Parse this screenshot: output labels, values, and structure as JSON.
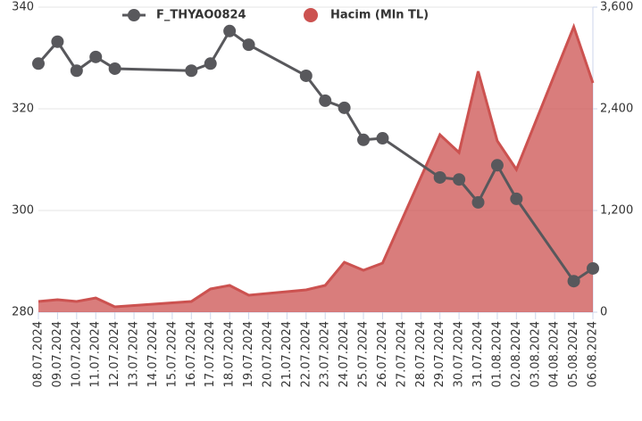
{
  "chart_data": {
    "type": "line",
    "x": [
      "08.07.2024",
      "09.07.2024",
      "10.07.2024",
      "11.07.2024",
      "12.07.2024",
      "16.07.2024",
      "17.07.2024",
      "18.07.2024",
      "19.07.2024",
      "22.07.2024",
      "23.07.2024",
      "24.07.2024",
      "25.07.2024",
      "26.07.2024",
      "29.07.2024",
      "30.07.2024",
      "31.07.2024",
      "01.08.2024",
      "02.08.2024",
      "05.08.2024",
      "06.08.2024"
    ],
    "xlim": [
      "08.07.2024",
      "06.08.2024"
    ],
    "xticks": [
      "08.07.2024",
      "09.07.2024",
      "10.07.2024",
      "11.07.2024",
      "12.07.2024",
      "13.07.2024",
      "14.07.2024",
      "15.07.2024",
      "16.07.2024",
      "17.07.2024",
      "18.07.2024",
      "19.07.2024",
      "20.07.2024",
      "21.07.2024",
      "22.07.2024",
      "23.07.2024",
      "24.07.2024",
      "25.07.2024",
      "26.07.2024",
      "27.07.2024",
      "28.07.2024",
      "29.07.2024",
      "30.07.2024",
      "31.07.2024",
      "01.08.2024",
      "02.08.2024",
      "03.08.2024",
      "04.08.2024",
      "05.08.2024",
      "06.08.2024"
    ],
    "series": [
      {
        "name": "F_THYAO0824",
        "type": "line",
        "color": "#58585c",
        "values": [
          328.9,
          333.2,
          327.5,
          330.2,
          327.9,
          327.5,
          328.9,
          335.3,
          332.6,
          326.5,
          321.6,
          320.2,
          313.9,
          314.2,
          306.5,
          306.1,
          301.6,
          308.9,
          302.3,
          286.1,
          288.6
        ]
      },
      {
        "name": "Hacim (Mln TL)",
        "type": "area",
        "axis": "y2",
        "color": "#cc5250",
        "values": [
          126,
          147,
          126,
          168,
          63,
          126,
          274,
          316,
          200,
          263,
          316,
          589,
          495,
          579,
          2095,
          1884,
          2842,
          2021,
          1684,
          3368,
          2705
        ]
      }
    ],
    "ylim": [
      280,
      340
    ],
    "yticks": [
      280,
      300,
      320,
      340
    ],
    "y2lim": [
      0,
      3600
    ],
    "y2ticks": [
      0,
      {
        "value": 1200,
        "label": "1,200"
      },
      {
        "value": 2400,
        "label": "2,400"
      },
      {
        "value": 3600,
        "label": "3,600"
      }
    ],
    "grid": true,
    "legend": "top"
  }
}
